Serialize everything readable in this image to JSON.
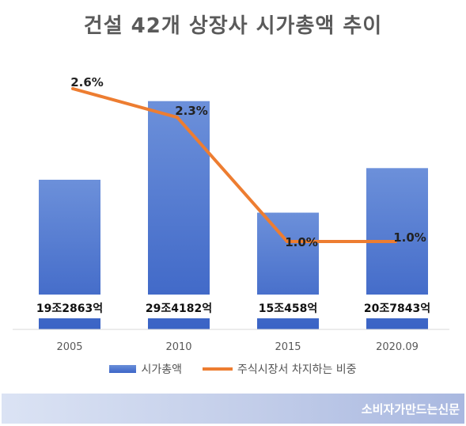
{
  "title": "건설 42개 상장사 시가총액 추이",
  "chart_data": {
    "type": "bar+line",
    "categories": [
      "2005",
      "2010",
      "2015",
      "2020.09"
    ],
    "series": [
      {
        "name": "시가총액",
        "type": "bar",
        "values": [
          19.2863,
          29.4182,
          15.0458,
          20.7843
        ],
        "labels": [
          "19조2863억",
          "29조4182억",
          "15조458억",
          "20조7843억"
        ],
        "color": "#4472c4"
      },
      {
        "name": "주식시장서 차지하는 비중",
        "type": "line",
        "values": [
          2.6,
          2.3,
          1.0,
          1.0
        ],
        "labels": [
          "2.6%",
          "2.3%",
          "1.0%",
          "1.0%"
        ],
        "color": "#ed7d31"
      }
    ]
  },
  "legend": {
    "bar_label": "시가총액",
    "line_label": "주식시장서 차지하는 비중"
  },
  "source": "소비자가만드는신문"
}
